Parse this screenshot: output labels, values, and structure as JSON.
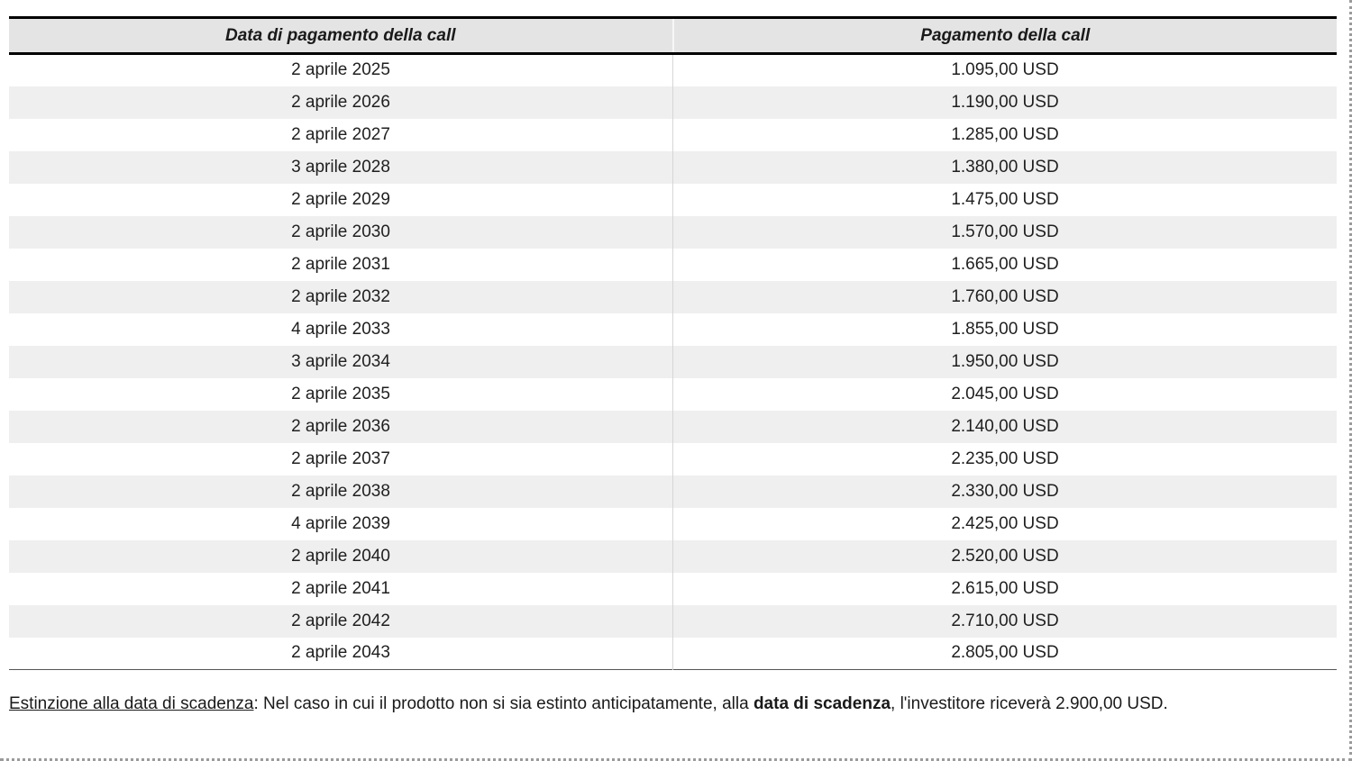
{
  "table": {
    "headers": [
      "Data di pagamento della call",
      "Pagamento della call"
    ],
    "rows": [
      {
        "date": "2 aprile 2025",
        "payment": "1.095,00 USD"
      },
      {
        "date": "2 aprile 2026",
        "payment": "1.190,00 USD"
      },
      {
        "date": "2 aprile 2027",
        "payment": "1.285,00 USD"
      },
      {
        "date": "3 aprile 2028",
        "payment": "1.380,00 USD"
      },
      {
        "date": "2 aprile 2029",
        "payment": "1.475,00 USD"
      },
      {
        "date": "2 aprile 2030",
        "payment": "1.570,00 USD"
      },
      {
        "date": "2 aprile 2031",
        "payment": "1.665,00 USD"
      },
      {
        "date": "2 aprile 2032",
        "payment": "1.760,00 USD"
      },
      {
        "date": "4 aprile 2033",
        "payment": "1.855,00 USD"
      },
      {
        "date": "3 aprile 2034",
        "payment": "1.950,00 USD"
      },
      {
        "date": "2 aprile 2035",
        "payment": "2.045,00 USD"
      },
      {
        "date": "2 aprile 2036",
        "payment": "2.140,00 USD"
      },
      {
        "date": "2 aprile 2037",
        "payment": "2.235,00 USD"
      },
      {
        "date": "2 aprile 2038",
        "payment": "2.330,00 USD"
      },
      {
        "date": "4 aprile 2039",
        "payment": "2.425,00 USD"
      },
      {
        "date": "2 aprile 2040",
        "payment": "2.520,00 USD"
      },
      {
        "date": "2 aprile 2041",
        "payment": "2.615,00 USD"
      },
      {
        "date": "2 aprile 2042",
        "payment": "2.710,00 USD"
      },
      {
        "date": "2 aprile 2043",
        "payment": "2.805,00 USD"
      }
    ]
  },
  "footer": {
    "lead": "Estinzione alla data di scadenza",
    "separator": ": ",
    "text_before_bold": "Nel caso in cui il prodotto non si sia estinto anticipatamente, alla ",
    "bold": "data di scadenza",
    "text_after_bold": ", l'investitore riceverà 2.900,00 USD."
  },
  "colors": {
    "header_bg": "#e4e4e4",
    "row_alt_bg": "#efefef",
    "table_border": "#000000",
    "column_divider": "#d6d6d6",
    "dotted_frame": "#9b9b9b"
  }
}
